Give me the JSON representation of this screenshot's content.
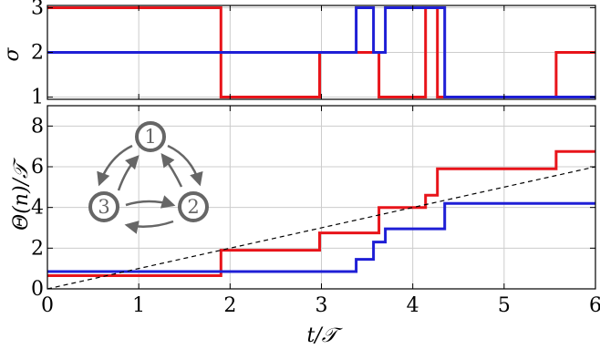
{
  "chart_data": [
    {
      "type": "line",
      "step": true,
      "title": "",
      "xlabel": "",
      "ylabel": "σ",
      "xlim": [
        0,
        6
      ],
      "ylim": [
        0.95,
        3.05
      ],
      "yticks": [
        "1",
        "2",
        "3"
      ],
      "grid": true,
      "series": [
        {
          "color": "#e8141a",
          "x": [
            0,
            1.9,
            1.9,
            2.98,
            2.98,
            3.63,
            3.63,
            4.14,
            4.14,
            4.27,
            4.27,
            5.57,
            5.57,
            6
          ],
          "y": [
            3,
            3,
            1,
            1,
            2,
            2,
            1,
            1,
            3,
            3,
            1,
            1,
            2,
            2
          ]
        },
        {
          "color": "#1f1fd6",
          "x": [
            0,
            3.38,
            3.38,
            3.57,
            3.57,
            3.7,
            3.7,
            4.35,
            4.35,
            5.75,
            5.75,
            6
          ],
          "y": [
            2,
            2,
            3,
            3,
            2,
            2,
            3,
            3,
            1,
            1,
            1,
            1
          ]
        }
      ]
    },
    {
      "type": "line",
      "step": true,
      "title": "",
      "xlabel": "t/𝒯",
      "ylabel": "Θ(n)/𝒯",
      "xlim": [
        0,
        6
      ],
      "ylim": [
        0,
        9
      ],
      "xticks": [
        "0",
        "1",
        "2",
        "3",
        "4",
        "5",
        "6"
      ],
      "yticks": [
        "0",
        "2",
        "4",
        "6",
        "8"
      ],
      "grid": true,
      "series": [
        {
          "color": "#e8141a",
          "x": [
            0,
            1.9,
            1.9,
            2.98,
            2.98,
            3.63,
            3.63,
            4.14,
            4.14,
            4.27,
            4.27,
            5.57,
            5.57,
            6
          ],
          "y": [
            0.65,
            0.65,
            1.9,
            1.9,
            2.75,
            2.75,
            4.0,
            4.0,
            4.6,
            4.6,
            5.9,
            5.9,
            6.75,
            6.75
          ]
        },
        {
          "color": "#1f1fd6",
          "x": [
            0,
            3.38,
            3.38,
            3.57,
            3.57,
            3.7,
            3.7,
            4.35,
            4.35,
            6
          ],
          "y": [
            0.85,
            0.85,
            1.45,
            1.45,
            2.3,
            2.3,
            2.95,
            2.95,
            4.2,
            4.2
          ]
        },
        {
          "color": "#000000",
          "dashed": true,
          "x": [
            0,
            6
          ],
          "y": [
            0,
            6
          ]
        }
      ],
      "inset": {
        "type": "state-cycle-diagram",
        "nodes": [
          "1",
          "2",
          "3"
        ],
        "edges": [
          [
            "1",
            "2"
          ],
          [
            "2",
            "1"
          ],
          [
            "2",
            "3"
          ],
          [
            "3",
            "2"
          ],
          [
            "3",
            "1"
          ],
          [
            "1",
            "3"
          ]
        ]
      }
    }
  ]
}
